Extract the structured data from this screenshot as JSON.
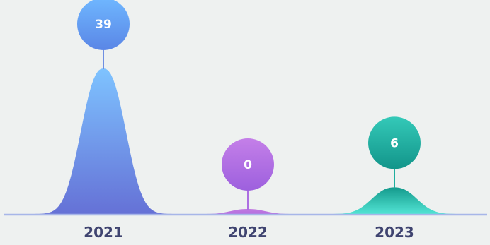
{
  "chart_data": {
    "type": "area",
    "categories": [
      "2021",
      "2022",
      "2023"
    ],
    "values": [
      39,
      0,
      6
    ],
    "ylim": [
      0,
      39
    ],
    "grid": false,
    "colors": [
      {
        "top": "#7ec3ff",
        "bottom": "#6571d6",
        "bubble_top": "#6fb7ff",
        "bubble_bottom": "#5a86e6",
        "stem": "#6f8fe2"
      },
      {
        "top": "#c27be0",
        "bottom": "#b46ee0",
        "bubble_top": "#c47fe8",
        "bubble_bottom": "#9d60de",
        "stem": "#ad6fe2"
      },
      {
        "top": "#149a8c",
        "bottom": "#52e4d4",
        "bubble_top": "#34c9b8",
        "bubble_bottom": "#12958a",
        "stem": "#1fae9e"
      }
    ],
    "baseline_color": "#a7b6e8",
    "axis_label_color": "#3f4470"
  }
}
